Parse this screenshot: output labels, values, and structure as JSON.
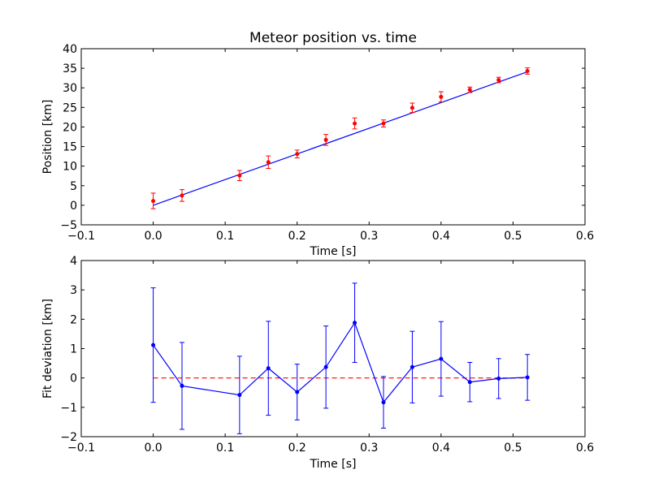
{
  "chart_data": [
    {
      "type": "scatter",
      "title": "Meteor position vs. time",
      "xlabel": "Time [s]",
      "ylabel": "Position [km]",
      "xlim": [
        -0.1,
        0.6
      ],
      "ylim": [
        -5,
        40
      ],
      "xticks": [
        -0.1,
        0.0,
        0.1,
        0.2,
        0.3,
        0.4,
        0.5,
        0.6
      ],
      "xtick_labels": [
        "−0.1",
        "0.0",
        "0.1",
        "0.2",
        "0.3",
        "0.4",
        "0.5",
        "0.6"
      ],
      "yticks": [
        -5,
        0,
        5,
        10,
        15,
        20,
        25,
        30,
        35,
        40
      ],
      "ytick_labels": [
        "−5",
        "0",
        "5",
        "10",
        "15",
        "20",
        "25",
        "30",
        "35",
        "40"
      ],
      "grid": false,
      "points": {
        "x": [
          0.0,
          0.04,
          0.12,
          0.16,
          0.2,
          0.24,
          0.28,
          0.32,
          0.36,
          0.4,
          0.44,
          0.48,
          0.52
        ],
        "y": [
          1.1,
          2.5,
          7.6,
          11.0,
          13.1,
          16.7,
          20.9,
          20.9,
          24.9,
          27.7,
          29.5,
          32.0,
          34.3
        ],
        "yerr": [
          2.0,
          1.5,
          1.3,
          1.6,
          1.0,
          1.4,
          1.4,
          0.9,
          1.2,
          1.3,
          0.7,
          0.7,
          0.8
        ],
        "color": "#ff0000"
      },
      "fit_line": {
        "x": [
          0.0,
          0.52
        ],
        "y": [
          0.0,
          34.1
        ],
        "color": "#0000ff"
      }
    },
    {
      "type": "line",
      "xlabel": "Time [s]",
      "ylabel": "Fit deviation [km]",
      "xlim": [
        -0.1,
        0.6
      ],
      "ylim": [
        -2,
        4
      ],
      "xticks": [
        -0.1,
        0.0,
        0.1,
        0.2,
        0.3,
        0.4,
        0.5,
        0.6
      ],
      "xtick_labels": [
        "−0.1",
        "0.0",
        "0.1",
        "0.2",
        "0.3",
        "0.4",
        "0.5",
        "0.6"
      ],
      "yticks": [
        -2,
        -1,
        0,
        1,
        2,
        3,
        4
      ],
      "ytick_labels": [
        "−2",
        "−1",
        "0",
        "1",
        "2",
        "3",
        "4"
      ],
      "grid": false,
      "series": {
        "x": [
          0.0,
          0.04,
          0.12,
          0.16,
          0.2,
          0.24,
          0.28,
          0.32,
          0.36,
          0.4,
          0.44,
          0.48,
          0.52
        ],
        "y": [
          1.12,
          -0.27,
          -0.58,
          0.33,
          -0.48,
          0.37,
          1.88,
          -0.83,
          0.37,
          0.65,
          -0.14,
          -0.02,
          0.02
        ],
        "yerr": [
          1.95,
          1.48,
          1.32,
          1.6,
          0.95,
          1.4,
          1.35,
          0.88,
          1.22,
          1.27,
          0.67,
          0.68,
          0.78
        ],
        "color": "#0000ff"
      },
      "reference_line": {
        "y": 0,
        "x": [
          0.0,
          0.52
        ],
        "color": "#ff0000",
        "style": "dashed"
      }
    }
  ]
}
